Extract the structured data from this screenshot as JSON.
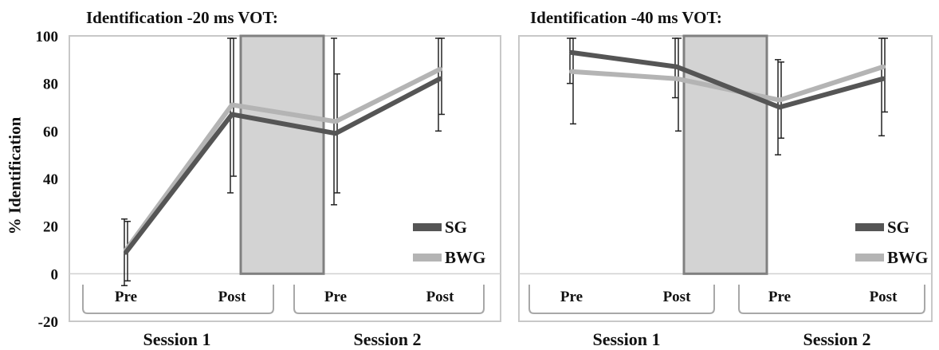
{
  "ylabel": "% Identification",
  "colors": {
    "SG": "#555555",
    "BWG": "#b4b4b4",
    "shade": "#d3d3d3",
    "shade_border": "#808080",
    "frame": "#c8c8c8"
  },
  "chart_data": [
    {
      "type": "line",
      "title": "Identification -20 ms VOT:",
      "ylabel": "% Identification",
      "ylim": [
        -20,
        100
      ],
      "yticks": [
        -20,
        0,
        20,
        40,
        60,
        80,
        100
      ],
      "categories": [
        "Pre",
        "Post",
        "Pre",
        "Post"
      ],
      "groups": [
        "Session 1",
        "Session 2"
      ],
      "shaded_region": "between Session 1 Post and Session 2 Pre",
      "legend": "bottom-right",
      "grid": false,
      "series": [
        {
          "name": "SG",
          "values": [
            9,
            67,
            59,
            82
          ],
          "err_low": [
            -5,
            34,
            29,
            60
          ],
          "err_high": [
            23,
            99,
            99,
            99
          ]
        },
        {
          "name": "BWG",
          "values": [
            10,
            71,
            64,
            86
          ],
          "err_low": [
            -3,
            41,
            34,
            67
          ],
          "err_high": [
            22,
            99,
            84,
            99
          ]
        }
      ]
    },
    {
      "type": "line",
      "title": "Identification -40 ms VOT:",
      "ylim": [
        -20,
        100
      ],
      "yticks": [
        -20,
        0,
        20,
        40,
        60,
        80,
        100
      ],
      "categories": [
        "Pre",
        "Post",
        "Pre",
        "Post"
      ],
      "groups": [
        "Session 1",
        "Session 2"
      ],
      "shaded_region": "between Session 1 Post and Session 2 Pre",
      "legend": "bottom-right",
      "grid": false,
      "series": [
        {
          "name": "SG",
          "values": [
            93,
            87,
            70,
            82
          ],
          "err_low": [
            80,
            74,
            50,
            58
          ],
          "err_high": [
            99,
            99,
            90,
            99
          ]
        },
        {
          "name": "BWG",
          "values": [
            85,
            82,
            73,
            87
          ],
          "err_low": [
            63,
            60,
            57,
            68
          ],
          "err_high": [
            99,
            99,
            89,
            99
          ]
        }
      ]
    }
  ]
}
